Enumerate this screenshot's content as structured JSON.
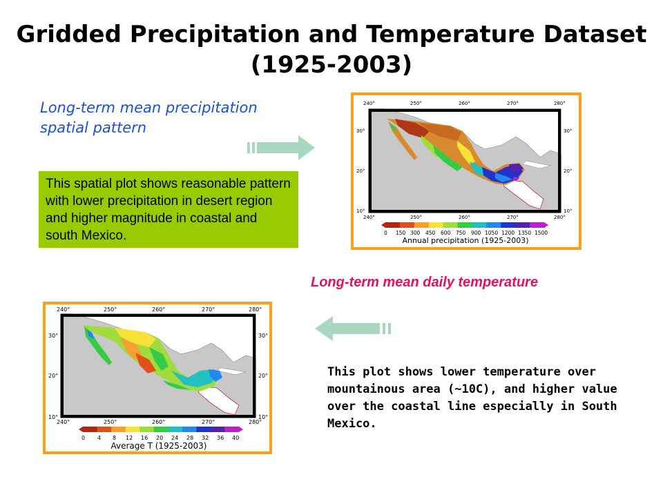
{
  "slide": {
    "title_line1": "Gridded Precipitation and Temperature Dataset",
    "title_line2": "(1925-2003)"
  },
  "precip": {
    "heading_line1": "Long-term mean precipitation",
    "heading_line2": "spatial pattern",
    "note": "This spatial plot shows reasonable pattern with lower precipitation in desert region and higher magnitude in coastal and south Mexico.",
    "map": {
      "lon_ticks": [
        "240°",
        "250°",
        "260°",
        "270°",
        "280°"
      ],
      "lat_ticks": [
        "30°",
        "20°",
        "10°"
      ],
      "scale_ticks": [
        "0",
        "150",
        "300",
        "450",
        "600",
        "750",
        "900",
        "1050",
        "1200",
        "1350",
        "1500"
      ],
      "scale_title": "Annual precipitation (1925-2003)",
      "palette": [
        "#b02810",
        "#e0501a",
        "#f5a030",
        "#f7e23a",
        "#9fdc3c",
        "#33cc44",
        "#22c0c0",
        "#2288ee",
        "#2233cc",
        "#5522aa",
        "#bb22cc"
      ]
    }
  },
  "temp": {
    "heading": "Long-term mean daily temperature",
    "note": "This plot shows lower temperature over mountainous area (~10C), and higher value over the coastal line especially in South Mexico.",
    "map": {
      "lon_ticks": [
        "240°",
        "250°",
        "260°",
        "270°",
        "280°"
      ],
      "lat_ticks": [
        "30°",
        "20°",
        "10°"
      ],
      "scale_ticks": [
        "0",
        "4",
        "8",
        "12",
        "16",
        "20",
        "24",
        "28",
        "32",
        "36",
        "40"
      ],
      "scale_title": "Average T (1925-2003)",
      "palette": [
        "#b02810",
        "#e0501a",
        "#f5a030",
        "#f7e23a",
        "#9fdc3c",
        "#33cc44",
        "#22c0c0",
        "#2288ee",
        "#2233cc",
        "#5522aa",
        "#bb22cc"
      ]
    }
  },
  "colors": {
    "frame": "#f7a01e",
    "note_bg": "#99cc00",
    "arrow": "#a8d8c0",
    "ocean": "#c8c8c8",
    "land": "#ffffff"
  }
}
